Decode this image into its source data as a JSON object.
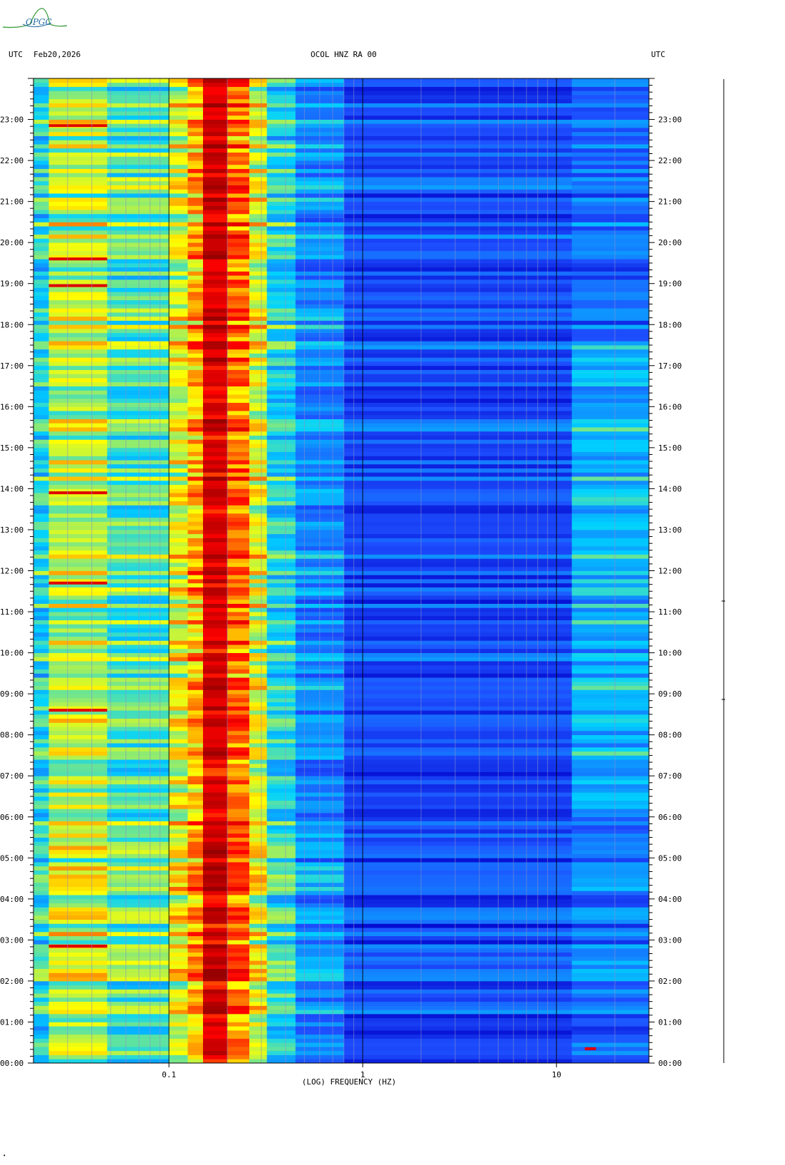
{
  "header": {
    "left_tz": "UTC",
    "date": "Feb20,2026",
    "station": "OCOL HNZ RA 00",
    "right_tz": "UTC"
  },
  "logo": {
    "text": "OPGC"
  },
  "chart_data": {
    "type": "heatmap",
    "title": "OCOL HNZ RA 00",
    "xlabel": "(LOG) FREQUENCY (HZ)",
    "x_scale": "log",
    "xlim": [
      0.02,
      30
    ],
    "x_ticks": [
      {
        "value": 0.1,
        "label": "0.1"
      },
      {
        "value": 1,
        "label": "1"
      },
      {
        "value": 10,
        "label": "10"
      }
    ],
    "ylim_hours": [
      0,
      24
    ],
    "y_ticks_left": [
      "00:00",
      "01:00",
      "02:00",
      "03:00",
      "04:00",
      "05:00",
      "06:00",
      "07:00",
      "08:00",
      "09:00",
      "10:00",
      "11:00",
      "12:00",
      "13:00",
      "14:00",
      "15:00",
      "16:00",
      "17:00",
      "18:00",
      "19:00",
      "20:00",
      "21:00",
      "22:00",
      "23:00"
    ],
    "y_ticks_right": [
      "00:00",
      "01:00",
      "02:00",
      "03:00",
      "04:00",
      "05:00",
      "06:00",
      "07:00",
      "08:00",
      "09:00",
      "10:00",
      "11:00",
      "12:00",
      "13:00",
      "14:00",
      "15:00",
      "16:00",
      "17:00",
      "18:00",
      "19:00",
      "20:00",
      "21:00",
      "22:00",
      "23:00"
    ],
    "colormap": [
      "#0000c8",
      "#1e50ff",
      "#00d2ff",
      "#ffff00",
      "#ff0000",
      "#960000"
    ],
    "bands": [
      {
        "f_min": 0.02,
        "f_max": 0.024,
        "level": 0.42
      },
      {
        "f_min": 0.024,
        "f_max": 0.048,
        "level": 0.55
      },
      {
        "f_min": 0.048,
        "f_max": 0.1,
        "level": 0.47
      },
      {
        "f_min": 0.1,
        "f_max": 0.125,
        "level": 0.58
      },
      {
        "f_min": 0.125,
        "f_max": 0.15,
        "level": 0.66
      },
      {
        "f_min": 0.15,
        "f_max": 0.2,
        "level": 0.88
      },
      {
        "f_min": 0.2,
        "f_max": 0.26,
        "level": 0.72
      },
      {
        "f_min": 0.26,
        "f_max": 0.32,
        "level": 0.58
      },
      {
        "f_min": 0.32,
        "f_max": 0.45,
        "level": 0.42
      },
      {
        "f_min": 0.45,
        "f_max": 0.8,
        "level": 0.3
      },
      {
        "f_min": 0.8,
        "f_max": 12,
        "level": 0.18
      },
      {
        "f_min": 12,
        "f_max": 30,
        "level": 0.24
      }
    ],
    "strong_events": [
      {
        "hour": 0.35,
        "f_min": 14,
        "f_max": 16
      },
      {
        "hour": 2.85,
        "f_min": 0.024,
        "f_max": 0.048
      },
      {
        "hour": 8.6,
        "f_min": 0.024,
        "f_max": 0.048
      },
      {
        "hour": 11.7,
        "f_min": 0.024,
        "f_max": 0.048
      },
      {
        "hour": 13.9,
        "f_min": 0.024,
        "f_max": 0.048
      },
      {
        "hour": 18.95,
        "f_min": 0.024,
        "f_max": 0.048
      },
      {
        "hour": 19.6,
        "f_min": 0.024,
        "f_max": 0.048
      },
      {
        "hour": 22.85,
        "f_min": 0.024,
        "f_max": 0.048
      }
    ]
  }
}
